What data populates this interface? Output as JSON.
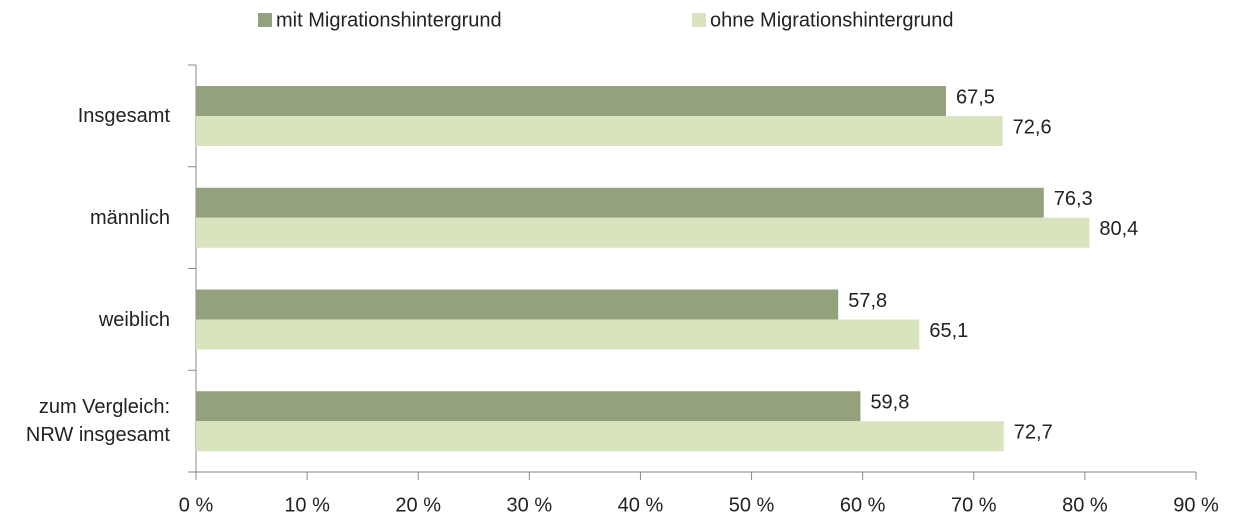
{
  "chart_data": {
    "type": "hbar",
    "categories": [
      "Insgesamt",
      "männlich",
      "weiblich",
      "zum Vergleich: NRW insgesamt"
    ],
    "series": [
      {
        "name": "mit Migrationshintergrund",
        "color": "#93a27c",
        "values": [
          67.5,
          76.3,
          57.8,
          59.8
        ],
        "value_labels": [
          "67,5",
          "76,3",
          "57,8",
          "59,8"
        ]
      },
      {
        "name": "ohne Migrationshintergrund",
        "color": "#d7e4bd",
        "values": [
          72.6,
          80.4,
          65.1,
          72.7
        ],
        "value_labels": [
          "72,6",
          "80,4",
          "65,1",
          "72,7"
        ]
      }
    ],
    "xlim": [
      0,
      90
    ],
    "xticks": [
      {
        "value": 0,
        "label": "0 %"
      },
      {
        "value": 10,
        "label": "10 %"
      },
      {
        "value": 20,
        "label": "20 %"
      },
      {
        "value": 30,
        "label": "30 %"
      },
      {
        "value": 40,
        "label": "40 %"
      },
      {
        "value": 50,
        "label": "50 %"
      },
      {
        "value": 60,
        "label": "60 %"
      },
      {
        "value": 70,
        "label": "70 %"
      },
      {
        "value": 80,
        "label": "80 %"
      },
      {
        "value": 90,
        "label": "90 %"
      }
    ],
    "legend": "top"
  }
}
